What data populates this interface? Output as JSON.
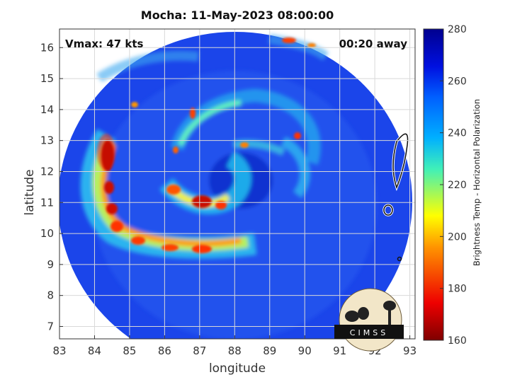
{
  "title": "Mocha: 11-May-2023 08:00:00",
  "vmax_text": "Vmax: 47 kts",
  "time_away_text": "00:20 away",
  "axes": {
    "xlabel": "longitude",
    "ylabel": "latitude",
    "xlim": [
      83,
      93.15
    ],
    "ylim": [
      6.6,
      16.6
    ],
    "xticks": [
      83,
      84,
      85,
      86,
      87,
      88,
      89,
      90,
      91,
      92,
      93
    ],
    "yticks": [
      7,
      8,
      9,
      10,
      11,
      12,
      13,
      14,
      15,
      16
    ],
    "grid": true
  },
  "colorbar": {
    "label": "Brightness Temp - Horizontal Polarization",
    "min": 160,
    "max": 280,
    "ticks": [
      160,
      180,
      200,
      220,
      240,
      260,
      280
    ]
  },
  "logo": {
    "text": "CIMSS"
  },
  "colors": {
    "background_scene": "#1a3ce6",
    "cold_core": "#7a0000"
  }
}
